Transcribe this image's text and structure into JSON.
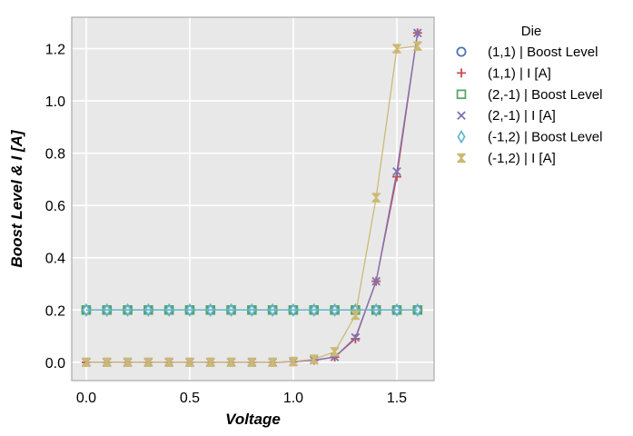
{
  "chart_data": {
    "type": "line",
    "title": "",
    "xlabel": "Voltage",
    "ylabel": "Boost Level & I [A]",
    "xlim": [
      -0.07,
      1.68
    ],
    "ylim": [
      -0.07,
      1.32
    ],
    "xticks": [
      0.0,
      0.5,
      1.0,
      1.5
    ],
    "xtick_labels": [
      "0.0",
      "0.5",
      "1.0",
      "1.5"
    ],
    "yticks": [
      0.0,
      0.2,
      0.4,
      0.6,
      0.8,
      1.0,
      1.2
    ],
    "ytick_labels": [
      "0.0",
      "0.2",
      "0.4",
      "0.6",
      "0.8",
      "1.0",
      "1.2"
    ],
    "grid": true,
    "legend": {
      "title": "Die",
      "placement": "outside-right"
    },
    "x": [
      0.0,
      0.1,
      0.2,
      0.3,
      0.4,
      0.5,
      0.6,
      0.7,
      0.8,
      0.9,
      1.0,
      1.1,
      1.2,
      1.3,
      1.4,
      1.5,
      1.6
    ],
    "series": [
      {
        "name": "(1,1) | Boost Level",
        "marker": "circle",
        "color": "#4C72B0",
        "values": [
          0.2,
          0.2,
          0.2,
          0.2,
          0.2,
          0.2,
          0.2,
          0.2,
          0.2,
          0.2,
          0.2,
          0.2,
          0.2,
          0.2,
          0.2,
          0.2,
          0.2
        ]
      },
      {
        "name": "(1,1) | I [A]",
        "marker": "plus",
        "color": "#C44E52",
        "values": [
          0.0,
          0.0,
          0.0,
          0.0,
          0.0,
          0.0,
          0.0,
          0.0,
          0.0,
          0.0,
          0.002,
          0.008,
          0.02,
          0.09,
          0.31,
          0.71,
          1.26
        ]
      },
      {
        "name": "(2,-1) | Boost Level",
        "marker": "square",
        "color": "#55A868",
        "values": [
          0.2,
          0.2,
          0.2,
          0.2,
          0.2,
          0.2,
          0.2,
          0.2,
          0.2,
          0.2,
          0.2,
          0.2,
          0.2,
          0.2,
          0.2,
          0.2,
          0.2
        ]
      },
      {
        "name": "(2,-1) | I [A]",
        "marker": "x",
        "color": "#8172B2",
        "values": [
          0.0,
          0.0,
          0.0,
          0.0,
          0.0,
          0.0,
          0.0,
          0.0,
          0.0,
          0.0,
          0.002,
          0.008,
          0.02,
          0.095,
          0.31,
          0.73,
          1.26
        ]
      },
      {
        "name": "(-1,2) | Boost Level",
        "marker": "diamond",
        "color": "#64B5CD",
        "values": [
          0.2,
          0.2,
          0.2,
          0.2,
          0.2,
          0.2,
          0.2,
          0.2,
          0.2,
          0.2,
          0.2,
          0.2,
          0.2,
          0.2,
          0.2,
          0.2,
          0.2
        ]
      },
      {
        "name": "(-1,2) | I [A]",
        "marker": "hourglass",
        "color": "#CCB974",
        "values": [
          0.0,
          0.0,
          0.0,
          0.0,
          0.0,
          0.0,
          0.0,
          0.0,
          0.0,
          0.0,
          0.003,
          0.012,
          0.04,
          0.18,
          0.63,
          1.2,
          1.21
        ]
      }
    ]
  },
  "colors": {
    "plot_background": "#E8E8E8",
    "grid": "#FFFFFF",
    "frame": "#A9A9A9"
  }
}
